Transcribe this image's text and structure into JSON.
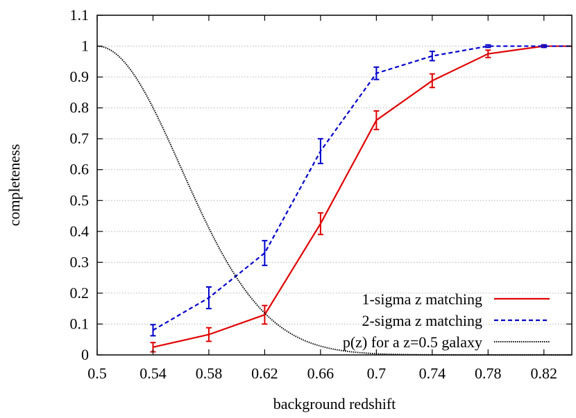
{
  "chart_data": {
    "type": "line",
    "title": "",
    "xlabel": "background redshift",
    "ylabel": "completeness",
    "xlim": [
      0.5,
      0.84
    ],
    "ylim": [
      0,
      1.1
    ],
    "xticks": [
      "0.5",
      "0.54",
      "0.58",
      "0.62",
      "0.66",
      "0.7",
      "0.74",
      "0.78",
      "0.82"
    ],
    "yticks": [
      "0",
      "0.1",
      "0.2",
      "0.3",
      "0.4",
      "0.5",
      "0.6",
      "0.7",
      "0.8",
      "0.9",
      "1",
      "1.1"
    ],
    "grid": "horizontal dotted",
    "legend_position": "bottom-right",
    "series": [
      {
        "name": "1-sigma z matching",
        "color": "#e00000",
        "style": "solid",
        "x": [
          0.54,
          0.58,
          0.62,
          0.66,
          0.7,
          0.74,
          0.78,
          0.82,
          0.84
        ],
        "y": [
          0.025,
          0.066,
          0.13,
          0.425,
          0.76,
          0.888,
          0.975,
          1.0,
          1.0
        ],
        "err": [
          0.015,
          0.022,
          0.03,
          0.035,
          0.03,
          0.022,
          0.012,
          0.004,
          0.0
        ]
      },
      {
        "name": "2-sigma z matching",
        "color": "#0000cc",
        "style": "dashed",
        "x": [
          0.54,
          0.58,
          0.62,
          0.66,
          0.7,
          0.74,
          0.78,
          0.82,
          0.84
        ],
        "y": [
          0.08,
          0.185,
          0.33,
          0.66,
          0.912,
          0.968,
          1.0,
          1.0,
          1.0
        ],
        "err": [
          0.018,
          0.035,
          0.04,
          0.04,
          0.02,
          0.015,
          0.004,
          0.004,
          0.0
        ]
      },
      {
        "name": "p(z) for a z=0.5 galaxy",
        "color": "#000000",
        "style": "dotted",
        "curve": "gaussian",
        "mean": 0.5,
        "sigma": 0.06,
        "amplitude": 1.0
      }
    ]
  }
}
